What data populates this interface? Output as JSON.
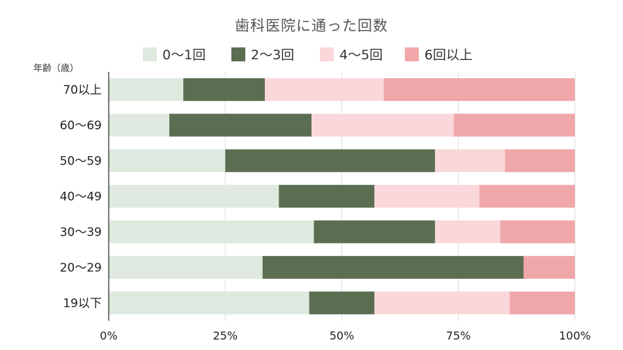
{
  "chart_data": {
    "type": "bar",
    "orientation": "horizontal",
    "stacked": "percent",
    "title": "歯科医院に通った回数",
    "ylabel": "年齢（歳）",
    "xlabel": "",
    "xlim": [
      0,
      100
    ],
    "x_ticks": [
      "0%",
      "25%",
      "50%",
      "75%",
      "100%"
    ],
    "grid": true,
    "legend_position": "top",
    "categories": [
      "70以上",
      "60～69",
      "50～59",
      "40～49",
      "30～39",
      "20～29",
      "19以下"
    ],
    "series": [
      {
        "name": "0～1回",
        "color": "#dfe9df",
        "values": [
          16,
          13,
          25,
          36.5,
          44,
          33,
          43
        ]
      },
      {
        "name": "2～3回",
        "color": "#5b6e51",
        "values": [
          17.5,
          30.5,
          45,
          20.5,
          26,
          56,
          14
        ]
      },
      {
        "name": "4～5回",
        "color": "#f9d7da",
        "values": [
          25.5,
          30.5,
          15,
          22.5,
          14,
          0,
          29
        ]
      },
      {
        "name": "6回以上",
        "color": "#f0a7a9",
        "values": [
          41,
          26,
          15,
          20.5,
          16,
          11,
          14
        ]
      }
    ]
  }
}
